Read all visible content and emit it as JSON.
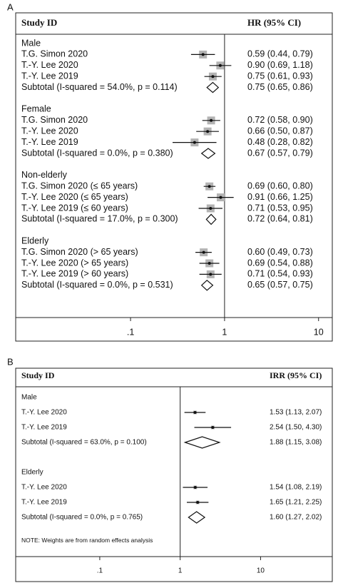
{
  "chart_data": [
    {
      "type": "forest",
      "panel": "A",
      "header_left": "Study ID",
      "header_right": "HR (95% CI)",
      "log_x": true,
      "xlim": [
        0.006,
        14
      ],
      "xticks": [
        {
          "value": 0.1,
          "label": ".1"
        },
        1,
        10
      ],
      "null_line": 1,
      "box_color": "#b3b3b3",
      "groups": [
        {
          "name": "Male",
          "labels": [
            "T.G. Simon 2020",
            "T.-Y. Lee 2020",
            "T.-Y. Lee 2019"
          ],
          "values": [
            0.59,
            0.9,
            0.75
          ],
          "lower": [
            0.44,
            0.69,
            0.61
          ],
          "upper": [
            0.79,
            1.18,
            0.93
          ],
          "value_labels": [
            "0.59 (0.44, 0.79)",
            "0.90 (0.69, 1.18)",
            "0.75 (0.61, 0.93)"
          ],
          "subtotal": {
            "label": "Subtotal  (I-squared = 54.0%, p = 0.114)",
            "value": 0.75,
            "lower": 0.65,
            "upper": 0.86,
            "value_label": "0.75 (0.65, 0.86)"
          }
        },
        {
          "name": "Female",
          "labels": [
            "T.G. Simon 2020",
            "T.-Y. Lee 2020",
            "T.-Y. Lee 2019"
          ],
          "values": [
            0.72,
            0.66,
            0.48
          ],
          "lower": [
            0.58,
            0.5,
            0.28
          ],
          "upper": [
            0.9,
            0.87,
            0.82
          ],
          "value_labels": [
            "0.72 (0.58, 0.90)",
            "0.66 (0.50, 0.87)",
            "0.48 (0.28, 0.82)"
          ],
          "subtotal": {
            "label": "Subtotal  (I-squared = 0.0%, p = 0.380)",
            "value": 0.67,
            "lower": 0.57,
            "upper": 0.79,
            "value_label": "0.67 (0.57, 0.79)"
          }
        },
        {
          "name": "Non-elderly",
          "labels": [
            "T.G. Simon 2020 (≤ 65 years)",
            "T.-Y. Lee 2020 (≤ 65 years)",
            "T.-Y. Lee 2019 (≤ 60 years)"
          ],
          "values": [
            0.69,
            0.91,
            0.71
          ],
          "lower": [
            0.6,
            0.66,
            0.53
          ],
          "upper": [
            0.8,
            1.25,
            0.95
          ],
          "value_labels": [
            "0.69 (0.60, 0.80)",
            "0.91 (0.66, 1.25)",
            "0.71 (0.53, 0.95)"
          ],
          "subtotal": {
            "label": "Subtotal  (I-squared = 17.0%, p = 0.300)",
            "value": 0.72,
            "lower": 0.64,
            "upper": 0.81,
            "value_label": "0.72 (0.64, 0.81)"
          }
        },
        {
          "name": "Elderly",
          "labels": [
            "T.G. Simon 2020 (> 65 years)",
            "T.-Y. Lee 2020 (> 65 years)",
            "T.-Y. Lee 2019 (> 60 years)"
          ],
          "values": [
            0.6,
            0.69,
            0.71
          ],
          "lower": [
            0.49,
            0.54,
            0.54
          ],
          "upper": [
            0.73,
            0.88,
            0.93
          ],
          "value_labels": [
            "0.60 (0.49, 0.73)",
            "0.69 (0.54, 0.88)",
            "0.71 (0.54, 0.93)"
          ],
          "subtotal": {
            "label": "Subtotal  (I-squared = 0.0%, p = 0.531)",
            "value": 0.65,
            "lower": 0.57,
            "upper": 0.75,
            "value_label": "0.65 (0.57, 0.75)"
          }
        }
      ]
    },
    {
      "type": "forest",
      "panel": "B",
      "header_left": "Study ID",
      "header_right": "IRR (95% CI)",
      "log_x": true,
      "xlim": [
        0.009,
        78
      ],
      "xticks": [
        {
          "value": 0.1,
          "label": ".1"
        },
        1,
        10
      ],
      "null_line": 1,
      "box_color": "#b3b3b3",
      "note": "NOTE: Weights are from random effects analysis",
      "groups": [
        {
          "name": "Male",
          "labels": [
            "T.-Y. Lee 2020",
            "T.-Y. Lee 2019"
          ],
          "values": [
            1.53,
            2.54
          ],
          "lower": [
            1.13,
            1.5
          ],
          "upper": [
            2.07,
            4.3
          ],
          "value_labels": [
            "1.53 (1.13, 2.07)",
            "2.54 (1.50, 4.30)"
          ],
          "subtotal": {
            "label": "Subtotal  (I-squared = 63.0%, p = 0.100)",
            "value": 1.88,
            "lower": 1.15,
            "upper": 3.08,
            "value_label": "1.88 (1.15, 3.08)"
          }
        },
        {
          "name": "Elderly",
          "labels": [
            "T.-Y. Lee 2020",
            "T.-Y. Lee 2019"
          ],
          "values": [
            1.54,
            1.65
          ],
          "lower": [
            1.08,
            1.21
          ],
          "upper": [
            2.19,
            2.25
          ],
          "value_labels": [
            "1.54 (1.08, 2.19)",
            "1.65 (1.21, 2.25)"
          ],
          "subtotal": {
            "label": "Subtotal  (I-squared = 0.0%, p = 0.765)",
            "value": 1.6,
            "lower": 1.27,
            "upper": 2.02,
            "value_label": "1.60 (1.27, 2.02)"
          }
        }
      ]
    }
  ]
}
